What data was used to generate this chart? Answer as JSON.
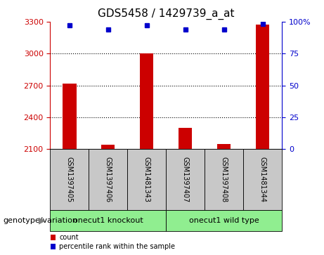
{
  "title": "GDS5458 / 1429739_a_at",
  "samples": [
    "GSM1397405",
    "GSM1397406",
    "GSM1481343",
    "GSM1397407",
    "GSM1397408",
    "GSM1481344"
  ],
  "counts": [
    2720,
    2140,
    3000,
    2300,
    2150,
    3270
  ],
  "percentile_ranks": [
    97,
    94,
    97,
    94,
    94,
    98
  ],
  "ylim_left": [
    2100,
    3300
  ],
  "ylim_right": [
    0,
    100
  ],
  "yticks_left": [
    2100,
    2400,
    2700,
    3000,
    3300
  ],
  "yticks_right": [
    0,
    25,
    50,
    75,
    100
  ],
  "ytick_right_labels": [
    "0",
    "25",
    "50",
    "75",
    "100%"
  ],
  "groups": [
    {
      "label": "onecut1 knockout",
      "start": 0,
      "end": 3,
      "color": "#90EE90"
    },
    {
      "label": "onecut1 wild type",
      "start": 3,
      "end": 6,
      "color": "#90EE90"
    }
  ],
  "bar_color": "#CC0000",
  "dot_color": "#0000CC",
  "bar_width": 0.35,
  "left_axis_color": "#CC0000",
  "right_axis_color": "#0000CC",
  "legend_red_label": "count",
  "legend_blue_label": "percentile rank within the sample",
  "genotype_label": "genotype/variation",
  "group_box_color": "#C8C8C8",
  "title_fontsize": 11,
  "tick_fontsize": 8,
  "sample_fontsize": 7,
  "group_fontsize": 8,
  "legend_fontsize": 7,
  "genotype_fontsize": 8
}
